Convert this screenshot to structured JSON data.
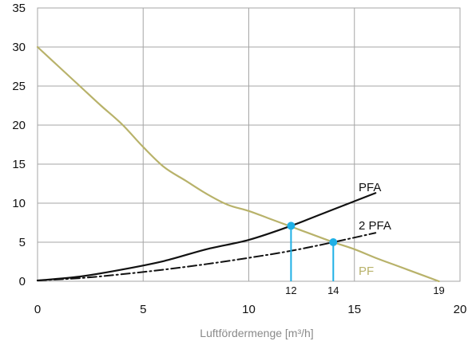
{
  "chart_data": {
    "type": "line",
    "title": "",
    "xlabel": "Luftfördermenge [m³/h]",
    "ylabel": "",
    "xlim": [
      0,
      20
    ],
    "ylim": [
      0,
      35
    ],
    "x_ticks": [
      "0",
      "5",
      "10",
      "15",
      "20"
    ],
    "x_tick_values": [
      0,
      5,
      10,
      15,
      20
    ],
    "y_ticks": [
      "0",
      "5",
      "10",
      "15",
      "20",
      "25",
      "30",
      "35"
    ],
    "y_tick_values": [
      0,
      5,
      10,
      15,
      20,
      25,
      30,
      35
    ],
    "grid": true,
    "colors": {
      "pf": "#b8b26a",
      "pfa": "#111111",
      "twopfa": "#111111",
      "marker": "#1fb0e6",
      "grid": "#a6a6a6"
    },
    "series": [
      {
        "name": "PFA",
        "style": "solid",
        "x": [
          0,
          2,
          4,
          6,
          8,
          10,
          12,
          14,
          16
        ],
        "y": [
          0.1,
          0.6,
          1.5,
          2.6,
          4.1,
          5.3,
          7.1,
          9.2,
          11.3
        ]
      },
      {
        "name": "2 PFA",
        "style": "dash-dot",
        "x": [
          0,
          2,
          4,
          6,
          8,
          10,
          12,
          14,
          16
        ],
        "y": [
          0.1,
          0.4,
          0.9,
          1.5,
          2.2,
          3.0,
          3.9,
          5.0,
          6.2
        ]
      },
      {
        "name": "PF",
        "style": "solid",
        "x": [
          0,
          1,
          2,
          3,
          4,
          5,
          6,
          7,
          8,
          9,
          10,
          11,
          12,
          13,
          14,
          15,
          16,
          17,
          18,
          19
        ],
        "y": [
          30,
          27.5,
          25.0,
          22.5,
          20.1,
          17.2,
          14.6,
          12.9,
          11.2,
          9.8,
          9.0,
          8.0,
          7.0,
          6.0,
          5.0,
          4.1,
          3.0,
          2.0,
          1.0,
          0
        ]
      }
    ],
    "markers": [
      {
        "x": 12,
        "y": 7.1,
        "label": "12"
      },
      {
        "x": 14,
        "y": 5.0,
        "label": "14"
      }
    ],
    "end_tick": {
      "x": 19,
      "label": "19"
    }
  }
}
